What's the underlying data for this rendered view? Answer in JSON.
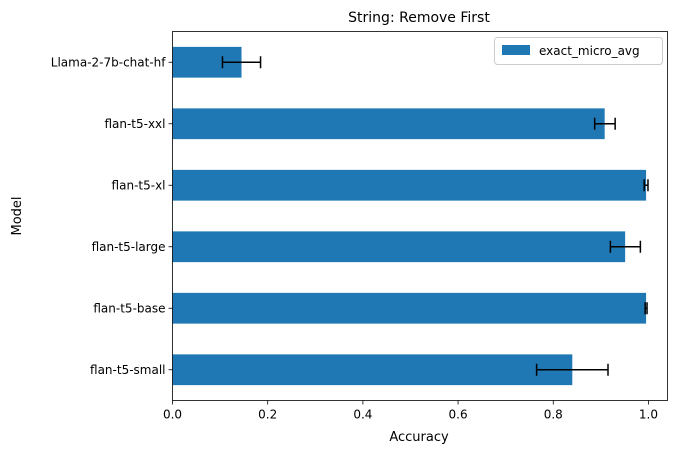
{
  "chart_data": {
    "type": "bar",
    "orientation": "horizontal",
    "title": "String: Remove First",
    "xlabel": "Accuracy",
    "ylabel": "Model",
    "xlim": [
      0,
      1.04
    ],
    "xticks": [
      0.0,
      0.2,
      0.4,
      0.6,
      0.8,
      1.0
    ],
    "xtick_labels": [
      "0.0",
      "0.2",
      "0.4",
      "0.6",
      "0.8",
      "1.0"
    ],
    "grid": false,
    "legend_position": "top-right",
    "categories": [
      "Llama-2-7b-chat-hf",
      "flan-t5-xxl",
      "flan-t5-xl",
      "flan-t5-large",
      "flan-t5-base",
      "flan-t5-small"
    ],
    "series": [
      {
        "name": "exact_micro_avg",
        "color": "#1f77b4",
        "values": [
          0.145,
          0.908,
          0.995,
          0.951,
          0.995,
          0.84
        ],
        "error_low": [
          0.105,
          0.887,
          0.991,
          0.92,
          0.993,
          0.765
        ],
        "error_high": [
          0.185,
          0.93,
          0.999,
          0.983,
          0.997,
          0.915
        ]
      }
    ]
  }
}
